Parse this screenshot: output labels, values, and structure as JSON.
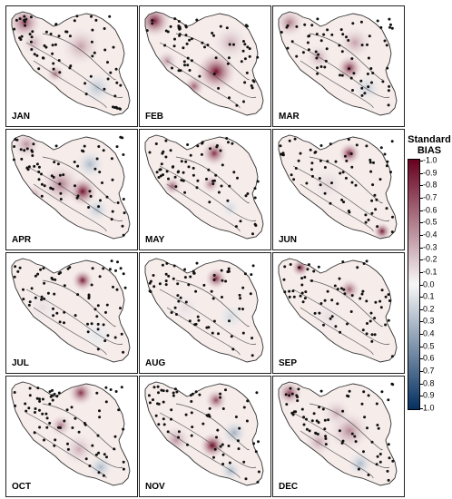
{
  "panels": [
    {
      "month": "JAN"
    },
    {
      "month": "FEB"
    },
    {
      "month": "MAR"
    },
    {
      "month": "APR"
    },
    {
      "month": "MAY"
    },
    {
      "month": "JUN"
    },
    {
      "month": "JUL"
    },
    {
      "month": "AUG"
    },
    {
      "month": "SEP"
    },
    {
      "month": "OCT"
    },
    {
      "month": "NOV"
    },
    {
      "month": "DEC"
    }
  ],
  "colorbar": {
    "title_line1": "Standard",
    "title_line2": "BIAS",
    "ticks": [
      "-1.0",
      "-0.9",
      "-0.8",
      "-0.7",
      "-0.6",
      "-0.5",
      "-0.4",
      "-0.3",
      "-0.2",
      "-0.1",
      "0.0",
      "0.1",
      "0.2",
      "0.3",
      "0.4",
      "0.5",
      "0.6",
      "0.7",
      "0.8",
      "0.9",
      "1.0"
    ],
    "colors": {
      "negative_end": "#67001f",
      "mid": "#f7f7f7",
      "positive_end": "#053061"
    }
  }
}
